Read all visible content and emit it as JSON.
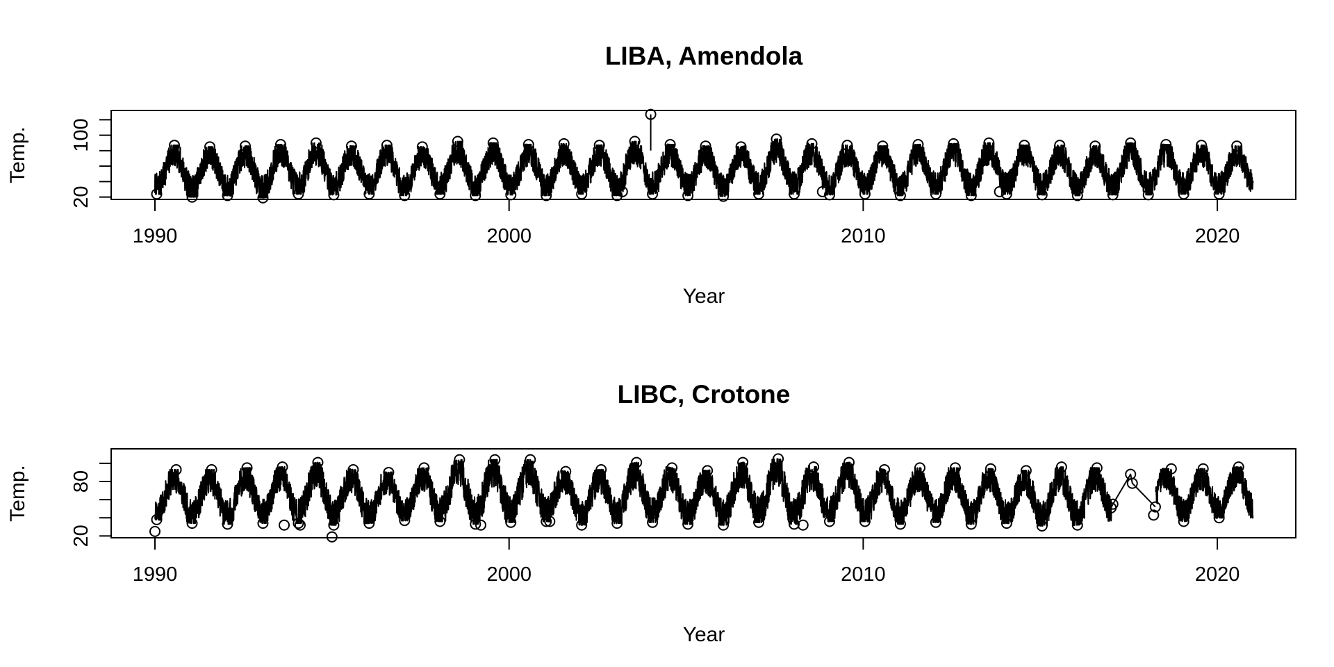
{
  "chart_data": [
    {
      "type": "line",
      "title": "LIBA, Amendola",
      "xlabel": "Year",
      "ylabel": "Temp.",
      "xlim": [
        1988.8,
        2022.2
      ],
      "ylim": [
        17,
        132
      ],
      "xticks": [
        1990,
        2000,
        2010,
        2020
      ],
      "yticks": [
        20,
        40,
        60,
        80,
        100,
        120
      ],
      "ytick_labels": [
        "20",
        "",
        "",
        "",
        "100",
        ""
      ],
      "grid": false,
      "legend": "none",
      "markers": "open-circle",
      "start_year": 1990.0,
      "end_year": 2021.0,
      "seasonal_peaks": [
        {
          "year": 1990.55,
          "value": 87
        },
        {
          "year": 1991.55,
          "value": 85
        },
        {
          "year": 1992.55,
          "value": 86
        },
        {
          "year": 1993.55,
          "value": 88
        },
        {
          "year": 1994.55,
          "value": 90
        },
        {
          "year": 1995.55,
          "value": 86
        },
        {
          "year": 1996.55,
          "value": 87
        },
        {
          "year": 1997.55,
          "value": 85
        },
        {
          "year": 1998.55,
          "value": 92
        },
        {
          "year": 1999.55,
          "value": 90
        },
        {
          "year": 2000.55,
          "value": 88
        },
        {
          "year": 2001.55,
          "value": 89
        },
        {
          "year": 2002.55,
          "value": 87
        },
        {
          "year": 2003.55,
          "value": 92
        },
        {
          "year": 2004.55,
          "value": 88
        },
        {
          "year": 2005.55,
          "value": 86
        },
        {
          "year": 2006.55,
          "value": 85
        },
        {
          "year": 2007.55,
          "value": 95
        },
        {
          "year": 2008.55,
          "value": 89
        },
        {
          "year": 2009.55,
          "value": 87
        },
        {
          "year": 2010.55,
          "value": 86
        },
        {
          "year": 2011.55,
          "value": 88
        },
        {
          "year": 2012.55,
          "value": 89
        },
        {
          "year": 2013.55,
          "value": 90
        },
        {
          "year": 2014.55,
          "value": 87
        },
        {
          "year": 2015.55,
          "value": 87
        },
        {
          "year": 2016.55,
          "value": 86
        },
        {
          "year": 2017.55,
          "value": 90
        },
        {
          "year": 2018.55,
          "value": 88
        },
        {
          "year": 2019.55,
          "value": 87
        },
        {
          "year": 2020.55,
          "value": 86
        }
      ],
      "seasonal_troughs": [
        {
          "year": 1990.05,
          "value": 24
        },
        {
          "year": 1991.05,
          "value": 20
        },
        {
          "year": 1992.05,
          "value": 22
        },
        {
          "year": 1993.05,
          "value": 19
        },
        {
          "year": 1994.05,
          "value": 24
        },
        {
          "year": 1995.05,
          "value": 23
        },
        {
          "year": 1996.05,
          "value": 24
        },
        {
          "year": 1997.05,
          "value": 22
        },
        {
          "year": 1998.05,
          "value": 24
        },
        {
          "year": 1999.05,
          "value": 22
        },
        {
          "year": 2000.05,
          "value": 23
        },
        {
          "year": 2001.05,
          "value": 22
        },
        {
          "year": 2002.05,
          "value": 24
        },
        {
          "year": 2003.05,
          "value": 22
        },
        {
          "year": 2004.05,
          "value": 24
        },
        {
          "year": 2005.05,
          "value": 22
        },
        {
          "year": 2006.05,
          "value": 21
        },
        {
          "year": 2007.05,
          "value": 24
        },
        {
          "year": 2008.05,
          "value": 24
        },
        {
          "year": 2009.05,
          "value": 23
        },
        {
          "year": 2010.05,
          "value": 24
        },
        {
          "year": 2011.05,
          "value": 22
        },
        {
          "year": 2012.05,
          "value": 24
        },
        {
          "year": 2013.05,
          "value": 22
        },
        {
          "year": 2014.05,
          "value": 24
        },
        {
          "year": 2015.05,
          "value": 23
        },
        {
          "year": 2016.05,
          "value": 22
        },
        {
          "year": 2017.05,
          "value": 23
        },
        {
          "year": 2018.05,
          "value": 23
        },
        {
          "year": 2019.05,
          "value": 24
        },
        {
          "year": 2020.05,
          "value": 24
        }
      ],
      "gaps": [],
      "outliers": [
        {
          "year": 2004.0,
          "value": 127
        },
        {
          "year": 2008.85,
          "value": 27
        },
        {
          "year": 2013.85,
          "value": 27
        },
        {
          "year": 2003.2,
          "value": 27
        }
      ]
    },
    {
      "type": "line",
      "title": "LIBC, Crotone",
      "xlabel": "Year",
      "ylabel": "Temp.",
      "xlim": [
        1988.8,
        2022.2
      ],
      "ylim": [
        18,
        116
      ],
      "xticks": [
        1990,
        2000,
        2010,
        2020
      ],
      "yticks": [
        20,
        40,
        60,
        80,
        100
      ],
      "ytick_labels": [
        "20",
        "",
        "",
        "80",
        ""
      ],
      "grid": false,
      "legend": "none",
      "markers": "open-circle",
      "start_year": 1990.0,
      "end_year": 2021.0,
      "seasonal_peaks": [
        {
          "year": 1990.6,
          "value": 93
        },
        {
          "year": 1991.6,
          "value": 93
        },
        {
          "year": 1992.6,
          "value": 95
        },
        {
          "year": 1993.6,
          "value": 96
        },
        {
          "year": 1994.6,
          "value": 101
        },
        {
          "year": 1995.6,
          "value": 93
        },
        {
          "year": 1996.6,
          "value": 90
        },
        {
          "year": 1997.6,
          "value": 95
        },
        {
          "year": 1998.6,
          "value": 104
        },
        {
          "year": 1999.6,
          "value": 104
        },
        {
          "year": 2000.6,
          "value": 104
        },
        {
          "year": 2001.6,
          "value": 91
        },
        {
          "year": 2002.6,
          "value": 93
        },
        {
          "year": 2003.6,
          "value": 101
        },
        {
          "year": 2004.6,
          "value": 95
        },
        {
          "year": 2005.6,
          "value": 92
        },
        {
          "year": 2006.6,
          "value": 101
        },
        {
          "year": 2007.6,
          "value": 105
        },
        {
          "year": 2008.6,
          "value": 96
        },
        {
          "year": 2009.6,
          "value": 101
        },
        {
          "year": 2010.6,
          "value": 93
        },
        {
          "year": 2011.6,
          "value": 95
        },
        {
          "year": 2012.6,
          "value": 95
        },
        {
          "year": 2013.6,
          "value": 94
        },
        {
          "year": 2014.6,
          "value": 92
        },
        {
          "year": 2015.6,
          "value": 96
        },
        {
          "year": 2016.6,
          "value": 95
        },
        {
          "year": 2018.7,
          "value": 94
        },
        {
          "year": 2019.6,
          "value": 94
        },
        {
          "year": 2020.6,
          "value": 96
        }
      ],
      "seasonal_troughs": [
        {
          "year": 1990.05,
          "value": 38
        },
        {
          "year": 1991.05,
          "value": 34
        },
        {
          "year": 1992.05,
          "value": 33
        },
        {
          "year": 1993.05,
          "value": 34
        },
        {
          "year": 1994.05,
          "value": 34
        },
        {
          "year": 1995.05,
          "value": 32
        },
        {
          "year": 1996.05,
          "value": 34
        },
        {
          "year": 1997.05,
          "value": 37
        },
        {
          "year": 1998.05,
          "value": 36
        },
        {
          "year": 1999.05,
          "value": 33
        },
        {
          "year": 2000.05,
          "value": 35
        },
        {
          "year": 2001.05,
          "value": 36
        },
        {
          "year": 2002.05,
          "value": 32
        },
        {
          "year": 2003.05,
          "value": 34
        },
        {
          "year": 2004.05,
          "value": 35
        },
        {
          "year": 2005.05,
          "value": 33
        },
        {
          "year": 2006.05,
          "value": 32
        },
        {
          "year": 2007.05,
          "value": 35
        },
        {
          "year": 2008.05,
          "value": 33
        },
        {
          "year": 2009.05,
          "value": 36
        },
        {
          "year": 2010.05,
          "value": 36
        },
        {
          "year": 2011.05,
          "value": 33
        },
        {
          "year": 2012.05,
          "value": 35
        },
        {
          "year": 2013.05,
          "value": 33
        },
        {
          "year": 2014.05,
          "value": 34
        },
        {
          "year": 2015.05,
          "value": 31
        },
        {
          "year": 2016.05,
          "value": 32
        },
        {
          "year": 2018.2,
          "value": 43
        },
        {
          "year": 2019.05,
          "value": 36
        },
        {
          "year": 2020.05,
          "value": 40
        }
      ],
      "gaps": [
        {
          "start": 2017.0,
          "end": 2018.25
        }
      ],
      "gap_points": [
        {
          "year": 2017.0,
          "value": 51
        },
        {
          "year": 2017.05,
          "value": 55
        },
        {
          "year": 2017.55,
          "value": 88
        },
        {
          "year": 2017.6,
          "value": 78
        },
        {
          "year": 2018.25,
          "value": 52
        }
      ],
      "outliers": [
        {
          "year": 1990.0,
          "value": 25
        },
        {
          "year": 1993.65,
          "value": 32
        },
        {
          "year": 1994.1,
          "value": 32
        },
        {
          "year": 1995.0,
          "value": 19
        },
        {
          "year": 1999.2,
          "value": 32
        },
        {
          "year": 2008.3,
          "value": 32
        },
        {
          "year": 2001.15,
          "value": 36
        }
      ]
    }
  ]
}
